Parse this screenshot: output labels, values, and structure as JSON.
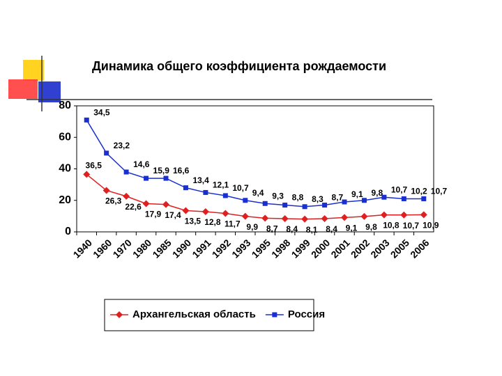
{
  "chart_data": {
    "type": "line",
    "title": "Динамика общего коэффициента рождаемости",
    "categories": [
      "1940",
      "1960",
      "1970",
      "1980",
      "1985",
      "1990",
      "1991",
      "1992",
      "1993",
      "1995",
      "1998",
      "1999",
      "2000",
      "2001",
      "2002",
      "2003",
      "2005",
      "2006"
    ],
    "series": [
      {
        "name": "Архангельская область",
        "color": "#e02020",
        "marker": "diamond",
        "values": [
          36.5,
          26.3,
          22.6,
          17.9,
          17.4,
          13.5,
          12.8,
          11.7,
          9.9,
          8.7,
          8.4,
          8.1,
          8.4,
          9.1,
          9.8,
          10.8,
          10.7,
          10.9
        ],
        "value_labels": [
          "36,5",
          "26,3",
          "22,6",
          "17,9",
          "17,4",
          "13,5",
          "12,8",
          "11,7",
          "9,9",
          "8,7",
          "8,4",
          "8,1",
          "8,4",
          "9,1",
          "9,8",
          "10,8",
          "10,7",
          "10,9"
        ]
      },
      {
        "name": "Россия",
        "color": "#1a2fd0",
        "marker": "square",
        "values": [
          71,
          50,
          38,
          34,
          34,
          28,
          25,
          23,
          20,
          18,
          17,
          16,
          17,
          19,
          20,
          22,
          21,
          21
        ]
      }
    ],
    "annotations": [
      "34,5",
      "23,2",
      "14,6",
      "15,9",
      "16,6",
      "13,4",
      "12,1",
      "10,7",
      "9,4",
      "9,3",
      "8,8",
      "8,3",
      "8,7",
      "9,1",
      "9,8",
      "10,7",
      "10,2",
      "10,7"
    ],
    "ylim": [
      0,
      80
    ],
    "yticks": [
      0,
      20,
      40,
      60,
      80
    ],
    "grid": false,
    "legend": "bottom"
  }
}
